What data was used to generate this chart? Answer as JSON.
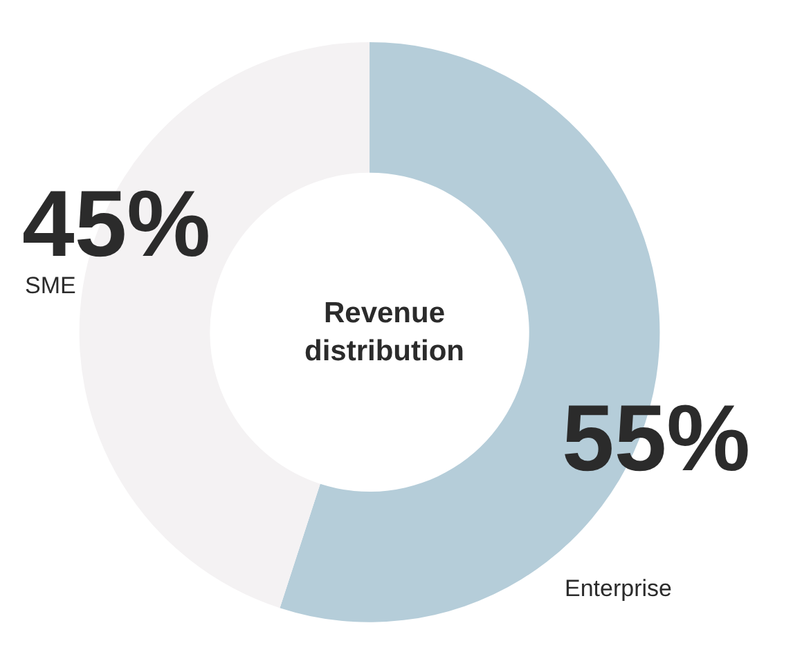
{
  "chart_data": {
    "type": "donut",
    "title": "Revenue distribution",
    "categories": [
      "Enterprise",
      "SME"
    ],
    "values": [
      55,
      45
    ],
    "colors": [
      "#b5cdd9",
      "#f4f2f3"
    ],
    "value_labels": [
      "55%",
      "45%"
    ],
    "legend": false
  }
}
